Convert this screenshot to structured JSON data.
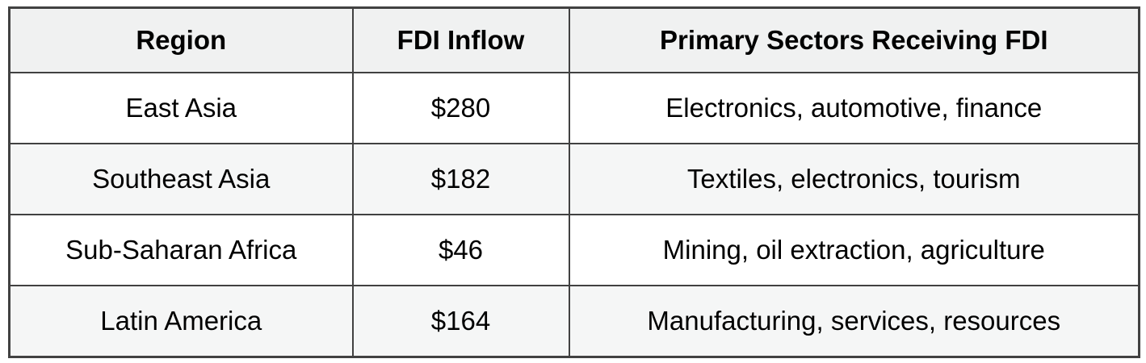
{
  "table": {
    "headers": {
      "region": "Region",
      "fdi_inflow": "FDI Inflow",
      "sectors": "Primary Sectors Receiving FDI"
    },
    "rows": [
      {
        "region": "East Asia",
        "fdi_inflow": "$280",
        "sectors": "Electronics, automotive, finance"
      },
      {
        "region": "Southeast Asia",
        "fdi_inflow": "$182",
        "sectors": "Textiles, electronics, tourism"
      },
      {
        "region": "Sub-Saharan Africa",
        "fdi_inflow": "$46",
        "sectors": "Mining, oil extraction, agriculture"
      },
      {
        "region": "Latin America",
        "fdi_inflow": "$164",
        "sectors": "Manufacturing, services, resources"
      }
    ],
    "colors": {
      "border": "#414141",
      "header_bg": "#f0f1f1",
      "stripe_bg": "#f5f6f6",
      "row_bg": "#ffffff",
      "text": "#000000"
    }
  },
  "chart_data": {
    "type": "table",
    "title": "",
    "columns": [
      "Region",
      "FDI Inflow",
      "Primary Sectors Receiving FDI"
    ],
    "rows": [
      [
        "East Asia",
        "$280",
        "Electronics, automotive, finance"
      ],
      [
        "Southeast Asia",
        "$182",
        "Textiles, electronics, tourism"
      ],
      [
        "Sub-Saharan Africa",
        "$46",
        "Mining, oil extraction, agriculture"
      ],
      [
        "Latin America",
        "$164",
        "Manufacturing, services, resources"
      ]
    ],
    "fdi_inflow_values": [
      280,
      182,
      46,
      164
    ],
    "notes": "FDI inflow shown in dollars; header row shaded light gray; data rows alternate white and light gray"
  }
}
